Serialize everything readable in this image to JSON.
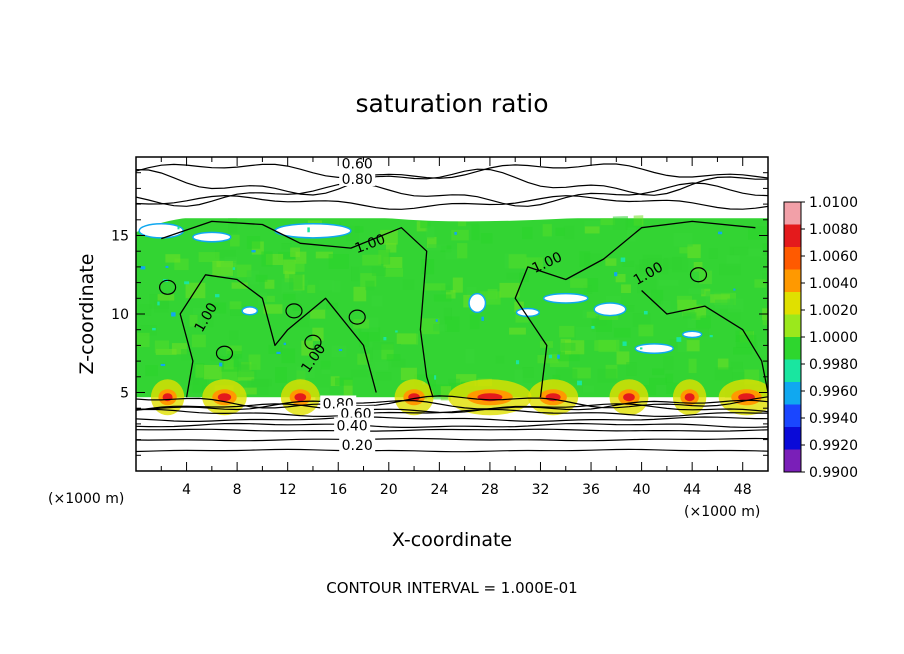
{
  "chart_data": {
    "type": "heatmap",
    "title": "saturation ratio",
    "xlabel": "X-coordinate",
    "ylabel": "Z-coordinate",
    "x_unit": "(×1000 m)",
    "y_unit": "(×1000 m)",
    "xlim": [
      0,
      50
    ],
    "ylim": [
      0,
      20
    ],
    "x_ticks": [
      "4",
      "8",
      "12",
      "16",
      "20",
      "24",
      "28",
      "32",
      "36",
      "40",
      "44",
      "48"
    ],
    "y_ticks": [
      "5",
      "10",
      "15"
    ],
    "colorbar_labels": [
      "1.0100",
      "1.0080",
      "1.0060",
      "1.0040",
      "1.0020",
      "1.0000",
      "0.9980",
      "0.9960",
      "0.9940",
      "0.9920",
      "0.9900"
    ],
    "colorbar_colors": [
      "#f2a0a8",
      "#e41a1c",
      "#ff5a00",
      "#ff9900",
      "#e0e000",
      "#9be81c",
      "#2ed62e",
      "#19e6a0",
      "#10a8f0",
      "#1a46ff",
      "#0a0ad8",
      "#7a1fb8"
    ],
    "contour_labels": [
      "0.60",
      "0.80",
      "1.00",
      "1.00",
      "1.00",
      "1.00",
      "1.00",
      "0.80",
      "0.60",
      "0.40",
      "0.20"
    ],
    "contour_interval": "CONTOUR INTERVAL = 1.000E-01",
    "field_range": [
      0.99,
      1.01
    ],
    "grid": false
  }
}
